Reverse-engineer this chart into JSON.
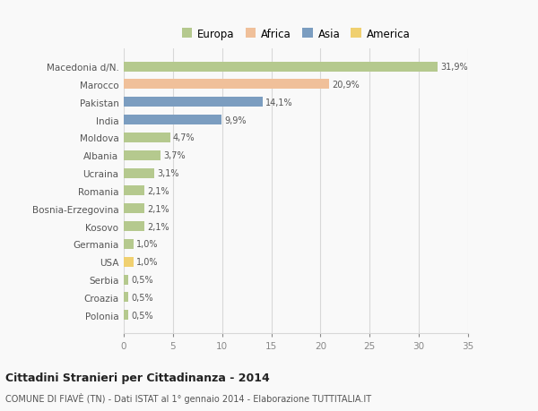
{
  "categories": [
    "Macedonia d/N.",
    "Marocco",
    "Pakistan",
    "India",
    "Moldova",
    "Albania",
    "Ucraina",
    "Romania",
    "Bosnia-Erzegovina",
    "Kosovo",
    "Germania",
    "USA",
    "Serbia",
    "Croazia",
    "Polonia"
  ],
  "values": [
    31.9,
    20.9,
    14.1,
    9.9,
    4.7,
    3.7,
    3.1,
    2.1,
    2.1,
    2.1,
    1.0,
    1.0,
    0.5,
    0.5,
    0.5
  ],
  "labels": [
    "31,9%",
    "20,9%",
    "14,1%",
    "9,9%",
    "4,7%",
    "3,7%",
    "3,1%",
    "2,1%",
    "2,1%",
    "2,1%",
    "1,0%",
    "1,0%",
    "0,5%",
    "0,5%",
    "0,5%"
  ],
  "colors": [
    "#b5c98e",
    "#f0c09a",
    "#7b9dc0",
    "#7b9dc0",
    "#b5c98e",
    "#b5c98e",
    "#b5c98e",
    "#b5c98e",
    "#b5c98e",
    "#b5c98e",
    "#b5c98e",
    "#f0d070",
    "#b5c98e",
    "#b5c98e",
    "#b5c98e"
  ],
  "legend_labels": [
    "Europa",
    "Africa",
    "Asia",
    "America"
  ],
  "legend_colors": [
    "#b5c98e",
    "#f0c09a",
    "#7b9dc0",
    "#f0d070"
  ],
  "title": "Cittadini Stranieri per Cittadinanza - 2014",
  "subtitle": "COMUNE DI FIAVÈ (TN) - Dati ISTAT al 1° gennaio 2014 - Elaborazione TUTTITALIA.IT",
  "xlim": [
    0,
    35
  ],
  "xticks": [
    0,
    5,
    10,
    15,
    20,
    25,
    30,
    35
  ],
  "background_color": "#f9f9f9",
  "grid_color": "#d8d8d8"
}
